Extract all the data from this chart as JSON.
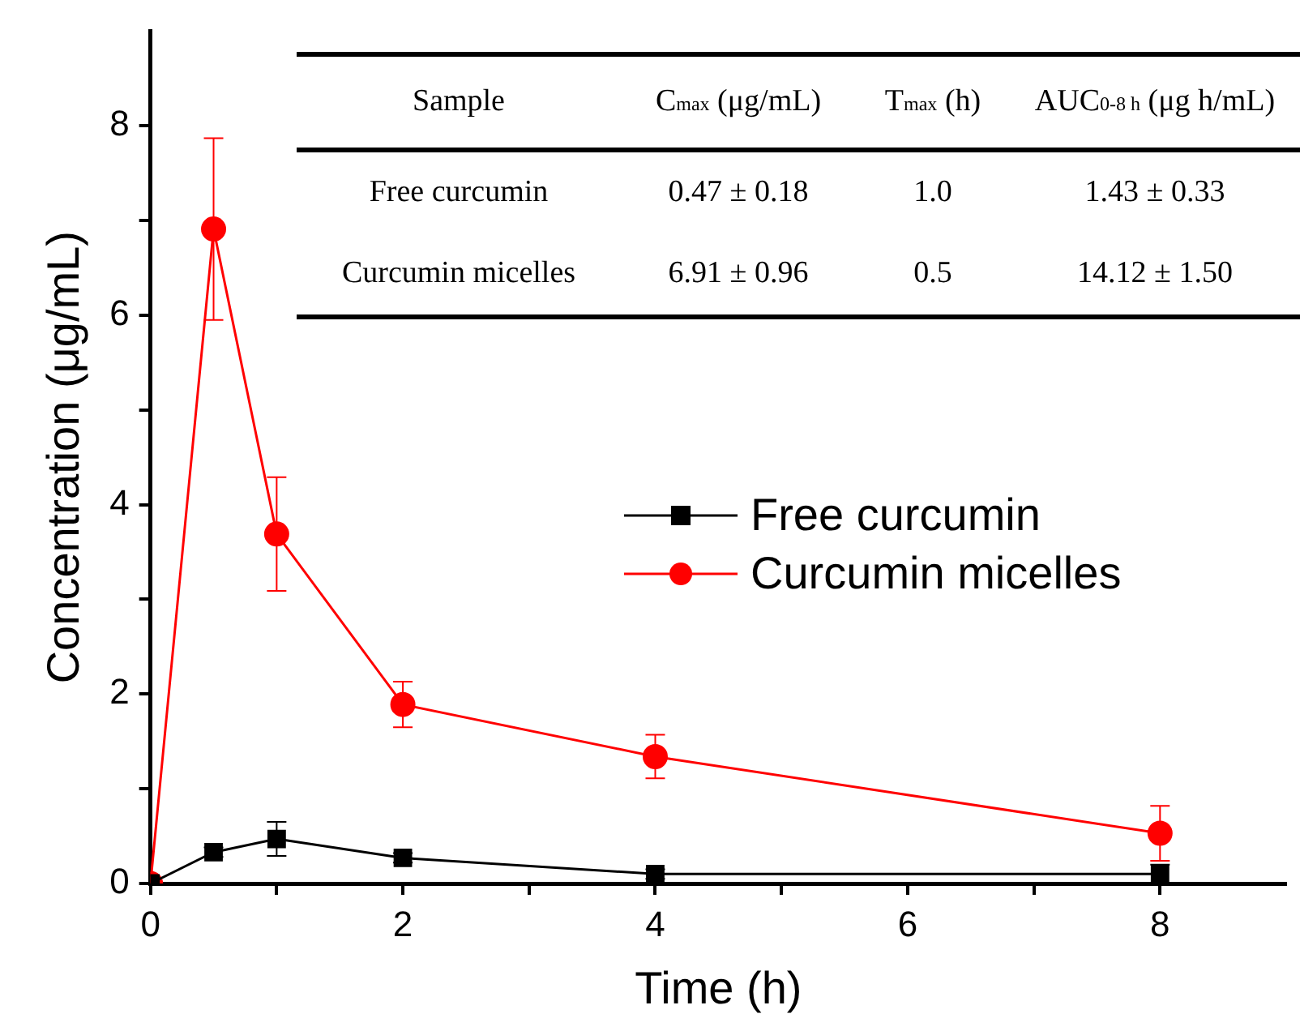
{
  "chart_data": {
    "type": "line",
    "xlabel": "Time (h)",
    "ylabel": "Concentration (μg/mL)",
    "x": [
      0,
      0.5,
      1,
      2,
      4,
      8
    ],
    "series": [
      {
        "name": "Free curcumin",
        "color": "#000000",
        "marker": "square",
        "values": [
          0,
          0.33,
          0.47,
          0.27,
          0.1,
          0.1
        ],
        "errors": [
          null,
          0.05,
          0.18,
          0.05,
          0.05,
          0.1
        ]
      },
      {
        "name": "Curcumin micelles",
        "color": "#ff0000",
        "marker": "circle",
        "values": [
          0,
          6.91,
          3.69,
          1.89,
          1.34,
          0.53
        ],
        "errors": [
          null,
          0.96,
          0.6,
          0.24,
          0.23,
          0.29
        ]
      }
    ],
    "xlim": [
      0,
      9
    ],
    "xticks": [
      0,
      {
        "value": 1,
        "label": null
      },
      2,
      {
        "value": 3,
        "label": null
      },
      4,
      {
        "value": 5,
        "label": null
      },
      6,
      {
        "value": 7,
        "label": null
      },
      8
    ],
    "ylim": [
      0,
      9
    ],
    "yticks": [
      0,
      {
        "value": 1,
        "label": null
      },
      2,
      {
        "value": 3,
        "label": null
      },
      4,
      {
        "value": 5,
        "label": null
      },
      6,
      {
        "value": 7,
        "label": null
      },
      8
    ],
    "grid": false,
    "legend": "right",
    "line_style": "solid",
    "annotations": [
      "Sample",
      "C$_{max}$ (μg/mL)",
      "T$_{max}$ (h)",
      "AUC$_{0-8 h}$ (μg h/mL)",
      "Free curcumin",
      "0.47 ± 0.18",
      "1.0",
      "1.43 ± 0.33",
      "Curcumin micelles",
      "6.91 ± 0.96",
      "0.5",
      "14.12 ± 1.50"
    ]
  }
}
